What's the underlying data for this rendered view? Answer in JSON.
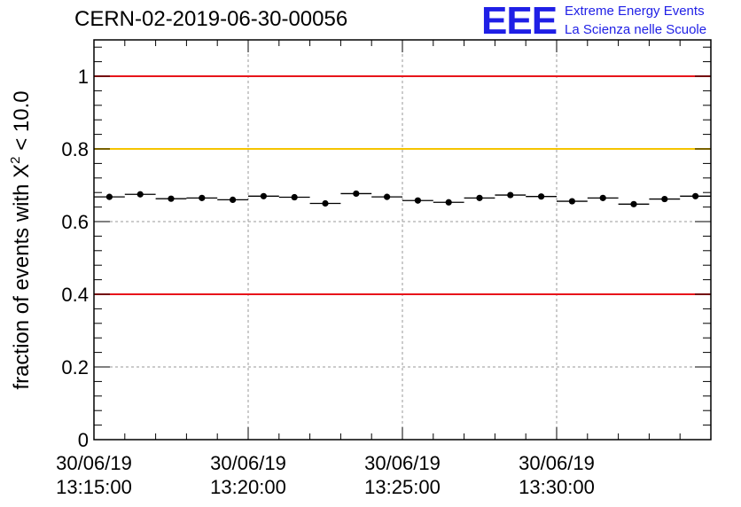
{
  "title": "CERN-02-2019-06-30-00056",
  "logo": {
    "mark": "EEE",
    "line1": "Extreme Energy Events",
    "line2": "La Scienza nelle Scuole",
    "color": "#1f1fe6"
  },
  "chart_data": {
    "type": "scatter",
    "title": "CERN-02-2019-06-30-00056",
    "xlabel": "",
    "ylabel": "fraction of events with χ² < 10.0",
    "ylabel_parts": {
      "prefix": "fraction of events with ",
      "symbol": "X",
      "superscript": "2",
      "suffix": " < 10.0"
    },
    "ylim": [
      0,
      1.1
    ],
    "yticks": [
      0,
      0.2,
      0.4,
      0.6,
      0.8,
      1
    ],
    "ytick_labels": [
      "0",
      "0.2",
      "0.4",
      "0.6",
      "0.8",
      "1"
    ],
    "xlim_minutes": [
      0,
      20
    ],
    "xticks_minutes": [
      0,
      5,
      10,
      15
    ],
    "xtick_labels": [
      [
        "30/06/19",
        "13:15:00"
      ],
      [
        "30/06/19",
        "13:20:00"
      ],
      [
        "30/06/19",
        "13:25:00"
      ],
      [
        "30/06/19",
        "13:30:00"
      ]
    ],
    "grid": true,
    "bin_width_minutes": 1,
    "x_minutes": [
      0.5,
      1.5,
      2.5,
      3.5,
      4.5,
      5.5,
      6.5,
      7.5,
      8.5,
      9.5,
      10.5,
      11.5,
      12.5,
      13.5,
      14.5,
      15.5,
      16.5,
      17.5,
      18.5,
      19.5
    ],
    "values": [
      0.668,
      0.675,
      0.663,
      0.665,
      0.66,
      0.67,
      0.667,
      0.65,
      0.677,
      0.668,
      0.658,
      0.653,
      0.665,
      0.673,
      0.669,
      0.656,
      0.665,
      0.648,
      0.662,
      0.67
    ],
    "reference_lines": [
      {
        "name": "upper-red-line",
        "value": 1.0,
        "color": "#e8141a"
      },
      {
        "name": "yellow-line",
        "value": 0.8,
        "color": "#f5c400"
      },
      {
        "name": "lower-red-line",
        "value": 0.4,
        "color": "#e8141a"
      }
    ]
  }
}
